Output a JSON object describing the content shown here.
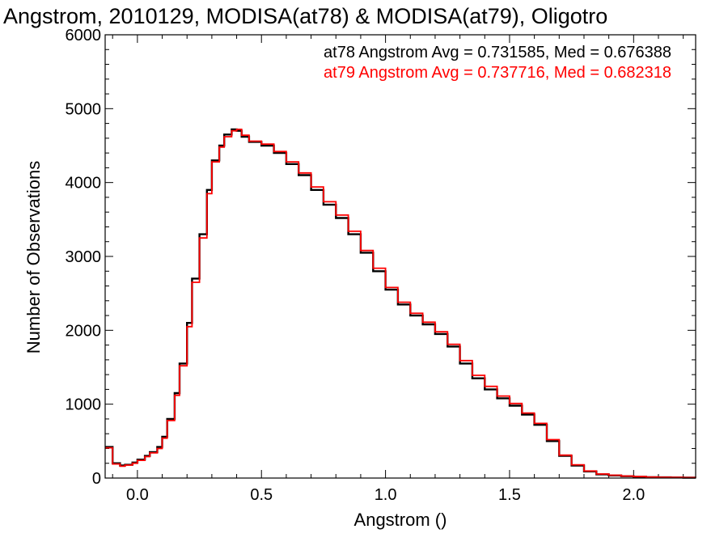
{
  "chart_data": {
    "type": "line",
    "title": "Angstrom, 2010129, MODISA(at78) & MODISA(at79), Oligotro",
    "xlabel": "Angstrom ()",
    "ylabel": "Number of Observations",
    "xlim": [
      -0.13,
      2.25
    ],
    "ylim": [
      0,
      6000
    ],
    "xticks": [
      0.0,
      0.5,
      1.0,
      1.5,
      2.0
    ],
    "xtick_labels": [
      "0.0",
      "0.5",
      "1.0",
      "1.5",
      "2.0"
    ],
    "yticks": [
      0,
      1000,
      2000,
      3000,
      4000,
      5000,
      6000
    ],
    "ytick_labels": [
      "0",
      "1000",
      "2000",
      "3000",
      "4000",
      "5000",
      "6000"
    ],
    "legend_position": "top-right",
    "series": [
      {
        "name": "at78",
        "legend": "at78 Angstrom Avg = 0.731585, Med = 0.676388",
        "color": "#000000",
        "x": [
          -0.13,
          -0.1,
          -0.07,
          -0.05,
          -0.02,
          0.0,
          0.03,
          0.05,
          0.08,
          0.1,
          0.12,
          0.15,
          0.17,
          0.2,
          0.22,
          0.25,
          0.28,
          0.3,
          0.33,
          0.35,
          0.38,
          0.4,
          0.42,
          0.45,
          0.5,
          0.55,
          0.6,
          0.65,
          0.7,
          0.75,
          0.8,
          0.85,
          0.9,
          0.95,
          1.0,
          1.05,
          1.1,
          1.15,
          1.2,
          1.25,
          1.3,
          1.35,
          1.4,
          1.45,
          1.5,
          1.55,
          1.6,
          1.65,
          1.7,
          1.75,
          1.8,
          1.85,
          1.9,
          1.95,
          2.0,
          2.05,
          2.1,
          2.15,
          2.2,
          2.25
        ],
        "y": [
          420,
          200,
          170,
          180,
          210,
          250,
          300,
          350,
          420,
          560,
          800,
          1150,
          1550,
          2100,
          2700,
          3300,
          3900,
          4300,
          4500,
          4650,
          4720,
          4700,
          4620,
          4550,
          4500,
          4400,
          4250,
          4100,
          3900,
          3700,
          3520,
          3300,
          3050,
          2800,
          2550,
          2350,
          2200,
          2080,
          1950,
          1780,
          1550,
          1350,
          1200,
          1080,
          980,
          860,
          720,
          500,
          300,
          170,
          90,
          50,
          35,
          25,
          18,
          12,
          10,
          8,
          6,
          5
        ]
      },
      {
        "name": "at79",
        "legend": "at79 Angstrom Avg = 0.737716, Med = 0.682318",
        "color": "#ff0000",
        "x": [
          -0.13,
          -0.1,
          -0.07,
          -0.05,
          -0.02,
          0.0,
          0.03,
          0.05,
          0.08,
          0.1,
          0.12,
          0.15,
          0.17,
          0.2,
          0.22,
          0.25,
          0.28,
          0.3,
          0.33,
          0.35,
          0.38,
          0.4,
          0.42,
          0.45,
          0.5,
          0.55,
          0.6,
          0.65,
          0.7,
          0.75,
          0.8,
          0.85,
          0.9,
          0.95,
          1.0,
          1.05,
          1.1,
          1.15,
          1.2,
          1.25,
          1.3,
          1.35,
          1.4,
          1.45,
          1.5,
          1.55,
          1.6,
          1.65,
          1.7,
          1.75,
          1.8,
          1.85,
          1.9,
          1.95,
          2.0,
          2.05,
          2.1,
          2.15,
          2.2,
          2.25
        ],
        "y": [
          410,
          190,
          160,
          175,
          200,
          240,
          290,
          340,
          400,
          540,
          780,
          1120,
          1520,
          2050,
          2650,
          3250,
          3850,
          4280,
          4480,
          4620,
          4700,
          4720,
          4640,
          4560,
          4520,
          4420,
          4280,
          4130,
          3940,
          3740,
          3560,
          3340,
          3080,
          2840,
          2580,
          2380,
          2230,
          2110,
          1980,
          1810,
          1590,
          1390,
          1240,
          1110,
          1010,
          880,
          740,
          520,
          310,
          180,
          95,
          55,
          38,
          27,
          20,
          13,
          11,
          9,
          7,
          5
        ]
      }
    ]
  }
}
